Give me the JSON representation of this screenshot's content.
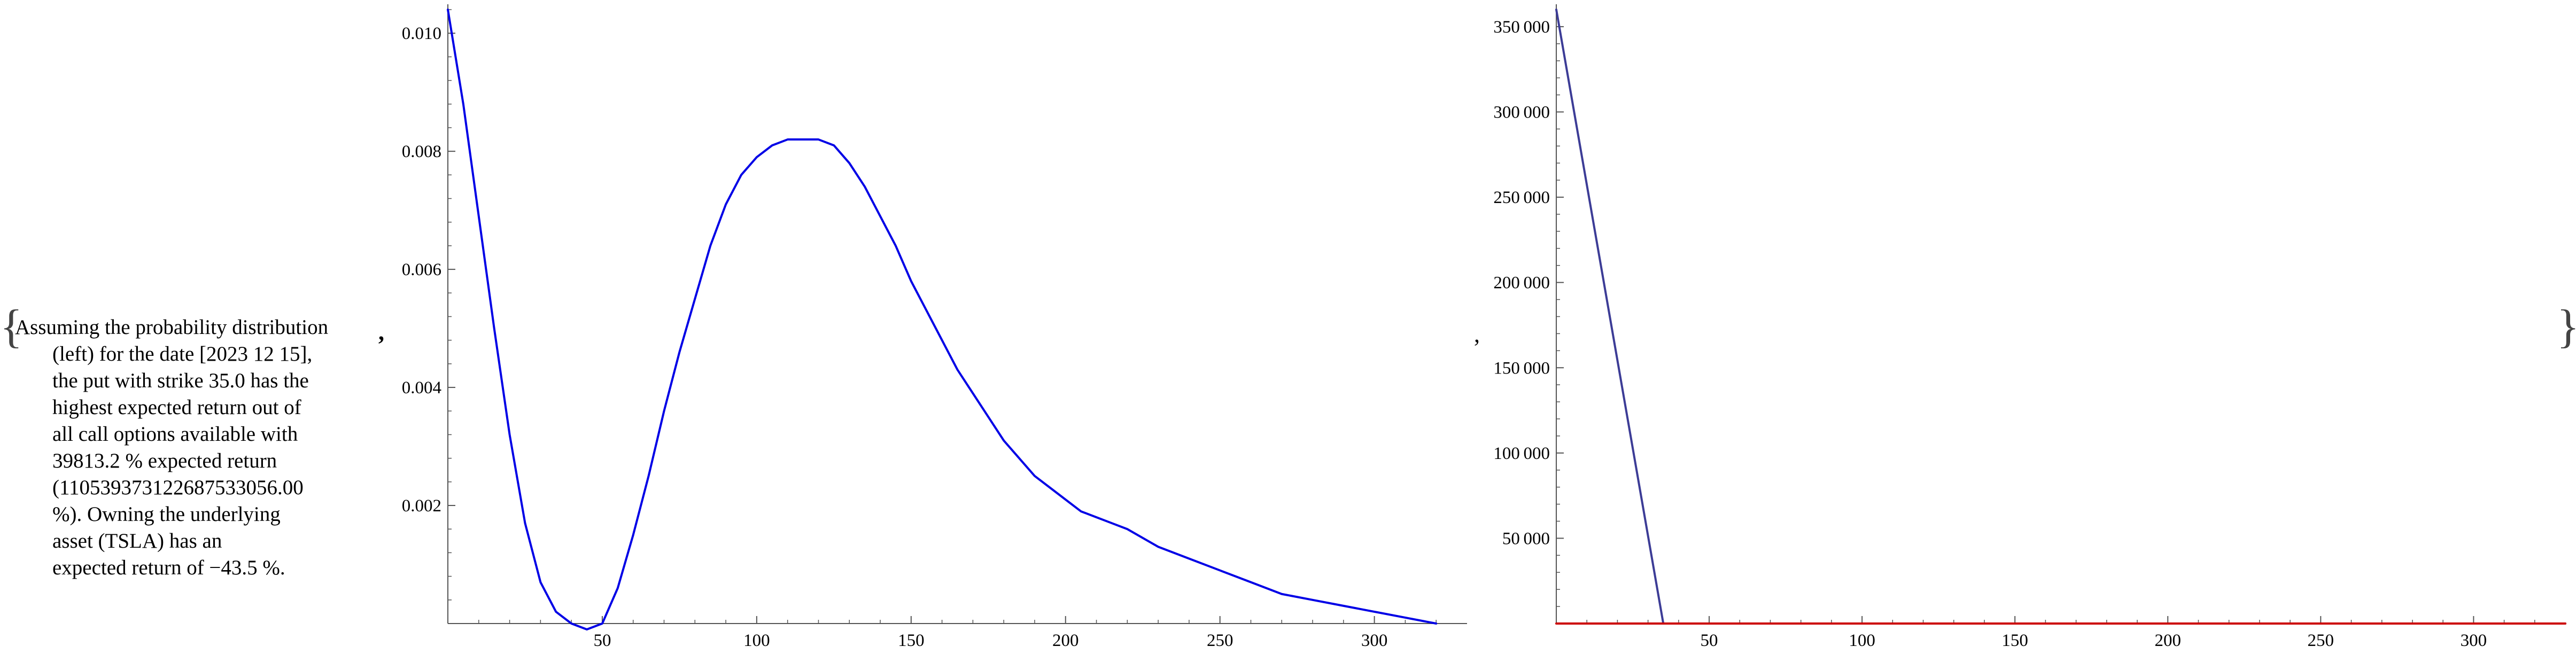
{
  "punctuation": {
    "open_brace": "{",
    "close_brace": "}",
    "comma": ","
  },
  "description": {
    "lines": [
      "Assuming the probability distribution",
      "(left) for the date [2023 12 15],",
      "the put with strike 35.0 has the",
      "highest expected return out of",
      "all call options available with",
      "39813.2 % expected return",
      "(1105393731226875330​56.00",
      "%). Owning the underlying",
      "asset (TSLA) has an",
      "expected return of −43.5 %."
    ]
  },
  "colors": {
    "blue": "#0000e6",
    "navy": "#3c3c96",
    "red": "#cc0000",
    "axis": "#555555"
  },
  "chart_data": [
    {
      "type": "line",
      "title": "",
      "xlabel": "",
      "ylabel": "",
      "xlim": [
        0,
        330
      ],
      "ylim": [
        0,
        0.0104
      ],
      "xticks": [
        50,
        100,
        150,
        200,
        250,
        300
      ],
      "yticks": [
        0.002,
        0.004,
        0.006,
        0.008,
        0.01
      ],
      "ytick_labels": [
        "0.002",
        "0.004",
        "0.006",
        "0.008",
        "0.010"
      ],
      "grid": false,
      "series": [
        {
          "color": "#0000e6",
          "x": [
            0,
            5,
            10,
            15,
            20,
            25,
            30,
            35,
            40,
            45,
            50,
            55,
            60,
            65,
            70,
            75,
            80,
            85,
            90,
            95,
            100,
            105,
            110,
            115,
            120,
            125,
            130,
            135,
            140,
            145,
            150,
            155,
            160,
            165,
            170,
            175,
            180,
            185,
            190,
            195,
            200,
            205,
            210,
            215,
            220,
            230,
            240,
            250,
            260,
            270,
            280,
            290,
            300,
            310,
            320
          ],
          "y": [
            0.0104,
            0.0088,
            0.0069,
            0.005,
            0.0032,
            0.0017,
            0.0007,
            0.0002,
            0.0,
            -0.0001,
            0.0,
            0.0006,
            0.0015,
            0.0025,
            0.0036,
            0.0046,
            0.0055,
            0.0064,
            0.0071,
            0.0076,
            0.0079,
            0.0081,
            0.0082,
            0.0082,
            0.0082,
            0.0081,
            0.0078,
            0.0074,
            0.0069,
            0.0064,
            0.0058,
            0.0053,
            0.0048,
            0.0043,
            0.0039,
            0.0035,
            0.0031,
            0.0028,
            0.0025,
            0.0023,
            0.0021,
            0.0019,
            0.0018,
            0.0017,
            0.0016,
            0.0013,
            0.0011,
            0.0009,
            0.0007,
            0.0005,
            0.0004,
            0.0003,
            0.0002,
            0.0001,
            0.0
          ]
        }
      ]
    },
    {
      "type": "line",
      "title": "",
      "xlabel": "",
      "ylabel": "",
      "xlim": [
        0,
        330
      ],
      "ylim": [
        0,
        360000
      ],
      "xticks": [
        50,
        100,
        150,
        200,
        250,
        300
      ],
      "yticks": [
        50000,
        100000,
        150000,
        200000,
        250000,
        300000,
        350000
      ],
      "ytick_labels": [
        "50 000",
        "100 000",
        "150 000",
        "200 000",
        "250 000",
        "300 000",
        "350 000"
      ],
      "grid": false,
      "series": [
        {
          "color": "#3c3c96",
          "x": [
            0,
            35,
            330
          ],
          "y": [
            360000,
            0,
            0
          ]
        },
        {
          "color": "#cc0000",
          "x": [
            0,
            330
          ],
          "y": [
            0,
            0
          ]
        }
      ]
    }
  ]
}
